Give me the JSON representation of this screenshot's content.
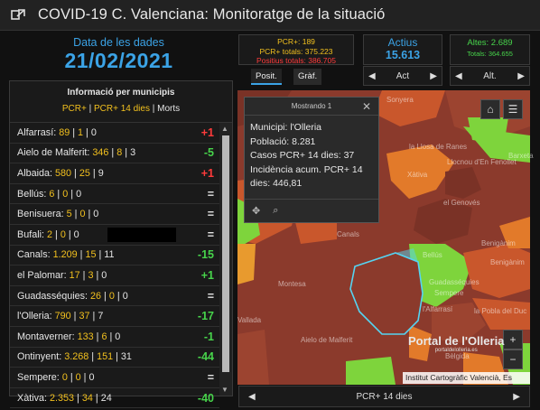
{
  "header": {
    "title": "COVID-19 C. Valenciana: Monitoratge de la situació"
  },
  "date": {
    "label": "Data de les dades",
    "value": "21/02/2021"
  },
  "municipalities": {
    "title": "Informació per municipis",
    "legend_pcr": "PCR+",
    "legend_sep1": " | ",
    "legend_pcr14": "PCR+ 14 dies",
    "legend_sep2": " | ",
    "legend_deaths": "Morts",
    "rows": [
      {
        "name": "Alfarrasí: ",
        "pcr": "89",
        "pcr14": "1",
        "deaths": "0",
        "trend": "+1",
        "trend_color": "red"
      },
      {
        "name": "Aielo de Malferit: ",
        "pcr": "346",
        "pcr14": "8",
        "deaths": "3",
        "trend": "-5",
        "trend_color": "grn"
      },
      {
        "name": "Albaida: ",
        "pcr": "580",
        "pcr14": "25",
        "deaths": "9",
        "trend": "+1",
        "trend_color": "red"
      },
      {
        "name": "Bellús: ",
        "pcr": "6",
        "pcr14": "0",
        "deaths": "0",
        "trend": "=",
        "trend_color": "wht"
      },
      {
        "name": "Benisuera: ",
        "pcr": "5",
        "pcr14": "0",
        "deaths": "0",
        "trend": "=",
        "trend_color": "wht"
      },
      {
        "name": "Bufali: ",
        "pcr": "2",
        "pcr14": "0",
        "deaths": "0",
        "trend": "=",
        "trend_color": "wht"
      },
      {
        "name": "Canals: ",
        "pcr": "1.209",
        "pcr14": "15",
        "deaths": "11",
        "trend": "-15",
        "trend_color": "grn"
      },
      {
        "name": "el Palomar: ",
        "pcr": "17",
        "pcr14": "3",
        "deaths": "0",
        "trend": "+1",
        "trend_color": "grn"
      },
      {
        "name": "Guadasséquies: ",
        "pcr": "26",
        "pcr14": "0",
        "deaths": "0",
        "trend": "=",
        "trend_color": "wht"
      },
      {
        "name": "l'Olleria: ",
        "pcr": "790",
        "pcr14": "37",
        "deaths": "7",
        "trend": "-17",
        "trend_color": "grn"
      },
      {
        "name": "Montaverner: ",
        "pcr": "133",
        "pcr14": "6",
        "deaths": "0",
        "trend": "-1",
        "trend_color": "grn"
      },
      {
        "name": "Ontinyent: ",
        "pcr": "3.268",
        "pcr14": "151",
        "deaths": "31",
        "trend": "-44",
        "trend_color": "grn"
      },
      {
        "name": "Sempere: ",
        "pcr": "0",
        "pcr14": "0",
        "deaths": "0",
        "trend": "=",
        "trend_color": "wht"
      },
      {
        "name": "Xàtiva: ",
        "pcr": "2.353",
        "pcr14": "34",
        "deaths": "24",
        "trend": "-40",
        "trend_color": "grn"
      }
    ]
  },
  "kpi_pcr": {
    "line1": "PCR+: 189",
    "line2": "PCR+ totals: 375.223",
    "line3": "Positius totals: 386.705"
  },
  "kpi_active": {
    "label": "Actius",
    "value": "15.613",
    "pager_label": "Act"
  },
  "kpi_discharges": {
    "line1": "Altes: 2.689",
    "line2": "Totals: 364.655",
    "pager_label": "Alt."
  },
  "tabs": [
    {
      "label": "Posit."
    },
    {
      "label": "Gràf."
    }
  ],
  "popup": {
    "header": "Mostrando 1",
    "line1": "Municipi: l'Olleria",
    "line2": "Població: 8.281",
    "line3": "Casos PCR+ 14 dies: 37",
    "line4": "Incidència acum. PCR+ 14",
    "line5": "dies: 446,81"
  },
  "map": {
    "labels": [
      {
        "text": "Sonyera"
      },
      {
        "text": "Barxeta"
      },
      {
        "text": "la Llosa de Ranes"
      },
      {
        "text": "Llocnou d'En Fenollet"
      },
      {
        "text": "Xàtiva"
      },
      {
        "text": "el Genovés"
      },
      {
        "text": "Canals"
      },
      {
        "text": "Benigànim"
      },
      {
        "text": "Bellús"
      },
      {
        "text": "Montesa"
      },
      {
        "text": "Vallada"
      },
      {
        "text": "Guadasséquies"
      },
      {
        "text": "Benigànim"
      },
      {
        "text": "Sempere"
      },
      {
        "text": "l'Alfarrasí"
      },
      {
        "text": "la Pobla del Duc"
      },
      {
        "text": "Aielo de Malferit"
      },
      {
        "text": "Bèlgida"
      }
    ],
    "watermark": "Portal de l'Olleria",
    "watermark_sub": "portaldelolleria.es",
    "attribution": "Institut Cartogràfic Valencià, Es"
  },
  "bottom": {
    "label": "PCR+ 14 dies"
  },
  "colors": {
    "accent_blue": "#3ba3e6",
    "yellow": "#f2c01e",
    "red": "#ff3b3b",
    "green": "#47d34b",
    "map_high": "#8b3a2c",
    "map_mid": "#c9572c",
    "map_low": "#7ed43c"
  }
}
